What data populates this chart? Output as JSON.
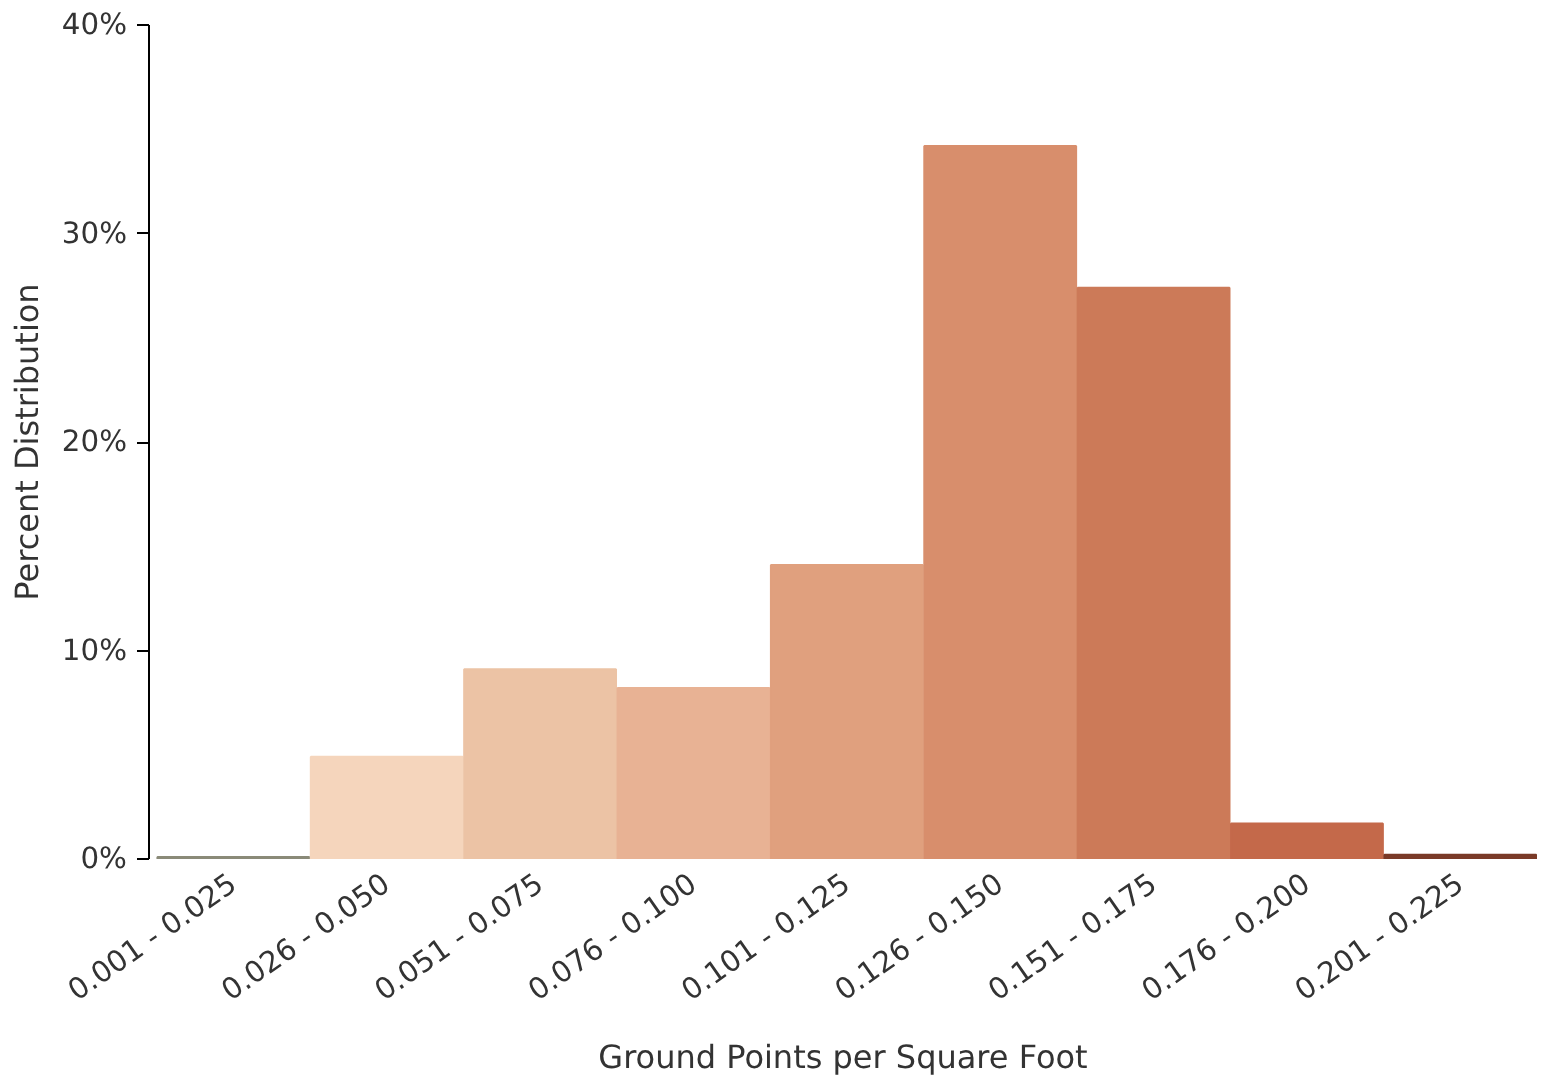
{
  "chart_data": {
    "type": "bar",
    "xlabel": "Ground Points per Square Foot",
    "ylabel": "Percent Distribution",
    "categories": [
      "0.001 - 0.025",
      "0.026 - 0.050",
      "0.051 - 0.075",
      "0.076 - 0.100",
      "0.101 - 0.125",
      "0.126 - 0.150",
      "0.151 - 0.175",
      "0.176 - 0.200",
      "0.201 - 0.225"
    ],
    "values": [
      0.1,
      4.9,
      9.1,
      8.2,
      14.1,
      34.2,
      27.4,
      1.7,
      0.2
    ],
    "colors": [
      "#8a8a78",
      "#f5d5bc",
      "#ecc3a5",
      "#e8b294",
      "#e0a07e",
      "#d88e6c",
      "#cc7a58",
      "#c4694a",
      "#7a3a28"
    ],
    "ylim": [
      0,
      40
    ],
    "yticks": [
      {
        "value": 0,
        "label": "0%"
      },
      {
        "value": 10,
        "label": "10%"
      },
      {
        "value": 20,
        "label": "20%"
      },
      {
        "value": 30,
        "label": "30%"
      },
      {
        "value": 40,
        "label": "40%"
      }
    ],
    "grid": false
  }
}
